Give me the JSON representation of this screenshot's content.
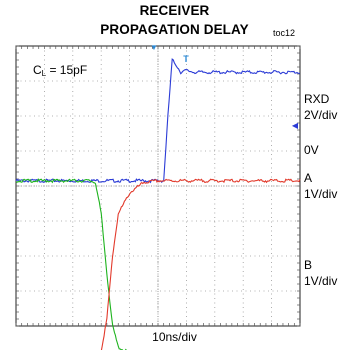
{
  "chart_data": {
    "type": "line",
    "title": "RECEIVER",
    "subtitle": "PROPAGATION DELAY",
    "figure_id": "toc12",
    "condition": {
      "prefix": "C",
      "subscript": "L",
      "suffix": " = 15pF"
    },
    "xlabel": "10ns/div",
    "grid": true,
    "x_divisions": 10,
    "y_divisions": 8,
    "channel_labels": [
      {
        "name": "RXD",
        "scale": "2V/div"
      },
      {
        "name": "0V"
      },
      {
        "name": "A",
        "scale": "1V/div"
      },
      {
        "name": "B",
        "scale": "1V/div"
      }
    ],
    "xlim": [
      0,
      10
    ],
    "series": [
      {
        "color": "#2b3bd6",
        "x": [
          0,
          5.2,
          5.35,
          5.5,
          5.65,
          5.8,
          6.0,
          6.3,
          10
        ],
        "values": [
          0.15,
          0.15,
          2.0,
          3.6,
          3.45,
          3.25,
          3.3,
          3.25,
          3.25
        ]
      },
      {
        "color": "#1db31d",
        "x": [
          0,
          2.6,
          2.8,
          3.0,
          3.2,
          3.4,
          3.6,
          3.8,
          4.0,
          10
        ],
        "values": [
          0.15,
          0.15,
          0.1,
          -0.8,
          -2.5,
          -4.0,
          -4.6,
          -4.7,
          -4.75,
          -4.75
        ]
      },
      {
        "color": "#e23a2c",
        "x": [
          0,
          2.8,
          3.0,
          3.2,
          3.4,
          3.6,
          4.0,
          4.5,
          5.0,
          10
        ],
        "values": [
          -4.8,
          -4.8,
          -4.7,
          -3.8,
          -2.0,
          -0.8,
          -0.2,
          0.1,
          0.15,
          0.15
        ]
      }
    ],
    "markers": {
      "top_trigger": "▼",
      "trigger_icon": "T",
      "right_marker": "◀"
    }
  }
}
